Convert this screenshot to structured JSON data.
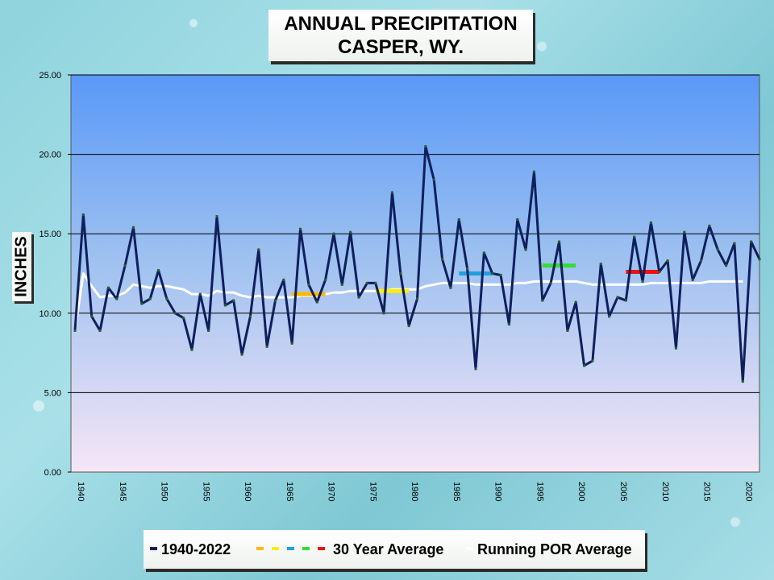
{
  "title_line1": "ANNUAL PRECIPITATION",
  "title_line2": "CASPER, WY.",
  "chart_data": {
    "type": "line",
    "ylabel": "INCHES",
    "ylim": [
      0,
      25
    ],
    "xlim": [
      1940,
      2022
    ],
    "yticks": [
      "0.00",
      "5.00",
      "10.00",
      "15.00",
      "20.00",
      "25.00"
    ],
    "xticks": [
      "1940",
      "1945",
      "1950",
      "1955",
      "1960",
      "1965",
      "1970",
      "1975",
      "1980",
      "1985",
      "1990",
      "1995",
      "2000",
      "2005",
      "2010",
      "2015",
      "2020"
    ],
    "grid": true,
    "legend_position": "bottom",
    "series": [
      {
        "name": "1940-2022",
        "color": "#0f1f5c",
        "x": [
          1940,
          1941,
          1942,
          1943,
          1944,
          1945,
          1946,
          1947,
          1948,
          1949,
          1950,
          1951,
          1952,
          1953,
          1954,
          1955,
          1956,
          1957,
          1958,
          1959,
          1960,
          1961,
          1962,
          1963,
          1964,
          1965,
          1966,
          1967,
          1968,
          1969,
          1970,
          1971,
          1972,
          1973,
          1974,
          1975,
          1976,
          1977,
          1978,
          1979,
          1980,
          1981,
          1982,
          1983,
          1984,
          1985,
          1986,
          1987,
          1988,
          1989,
          1990,
          1991,
          1992,
          1993,
          1994,
          1995,
          1996,
          1997,
          1998,
          1999,
          2000,
          2001,
          2002,
          2003,
          2004,
          2005,
          2006,
          2007,
          2008,
          2009,
          2010,
          2011,
          2012,
          2013,
          2014,
          2015,
          2016,
          2017,
          2018,
          2019,
          2020,
          2021,
          2022
        ],
        "y": [
          8.9,
          16.2,
          9.8,
          8.9,
          11.6,
          10.9,
          13.0,
          15.4,
          10.6,
          10.9,
          12.7,
          10.9,
          10.0,
          9.7,
          7.7,
          11.2,
          8.9,
          16.1,
          10.5,
          10.8,
          7.4,
          9.8,
          14.0,
          7.9,
          10.8,
          12.1,
          8.1,
          15.3,
          11.8,
          10.7,
          12.1,
          15.0,
          11.8,
          15.1,
          11.0,
          11.9,
          11.9,
          10.0,
          17.6,
          12.5,
          9.2,
          10.9,
          20.5,
          18.4,
          13.4,
          11.6,
          15.9,
          12.8,
          6.5,
          13.8,
          12.5,
          12.4,
          9.3,
          15.9,
          14.0,
          18.9,
          10.8,
          11.9,
          14.5,
          8.9,
          10.7,
          6.7,
          7.0,
          13.1,
          9.8,
          11.0,
          10.8,
          14.8,
          12.0,
          15.7,
          12.6,
          13.3,
          7.8,
          15.1,
          12.1,
          13.3,
          15.5,
          14.0,
          13.0,
          14.4,
          5.7,
          14.5,
          13.4
        ]
      },
      {
        "name": "30 Year Average",
        "segments": [
          {
            "x": [
              1966,
              1970
            ],
            "y": 11.2,
            "color": "#ffb800"
          },
          {
            "x": [
              1976,
              1980
            ],
            "y": 11.4,
            "color": "#ffee00"
          },
          {
            "x": [
              1986,
              1990
            ],
            "y": 12.5,
            "color": "#1fa0e0"
          },
          {
            "x": [
              1996,
              2000
            ],
            "y": 13.0,
            "color": "#33dd33"
          },
          {
            "x": [
              2006,
              2010
            ],
            "y": 12.6,
            "color": "#ee1111"
          }
        ]
      },
      {
        "name": "Running POR Average",
        "color": "#ffffff",
        "x": [
          1940,
          1941,
          1942,
          1943,
          1944,
          1945,
          1946,
          1947,
          1948,
          1949,
          1950,
          1951,
          1952,
          1953,
          1954,
          1955,
          1956,
          1957,
          1958,
          1959,
          1960,
          1961,
          1962,
          1963,
          1964,
          1965,
          1966,
          1967,
          1968,
          1969,
          1970,
          1971,
          1972,
          1973,
          1974,
          1975,
          1976,
          1977,
          1978,
          1979,
          1980,
          1981,
          1982,
          1983,
          1984,
          1985,
          1986,
          1987,
          1988,
          1989,
          1990,
          1991,
          1992,
          1993,
          1994,
          1995,
          1996,
          1997,
          1998,
          1999,
          2000,
          2001,
          2002,
          2003,
          2004,
          2005,
          2006,
          2007,
          2008,
          2009,
          2010,
          2011,
          2012,
          2013,
          2014,
          2015,
          2016,
          2017,
          2018,
          2019,
          2020
        ],
        "y": [
          8.9,
          12.5,
          11.7,
          11.0,
          11.1,
          11.1,
          11.3,
          11.8,
          11.7,
          11.6,
          11.7,
          11.7,
          11.6,
          11.5,
          11.2,
          11.2,
          11.1,
          11.4,
          11.3,
          11.3,
          11.1,
          11.0,
          11.1,
          11.0,
          11.0,
          11.0,
          11.0,
          11.1,
          11.1,
          11.1,
          11.2,
          11.3,
          11.3,
          11.4,
          11.4,
          11.4,
          11.4,
          11.4,
          11.5,
          11.5,
          11.5,
          11.5,
          11.7,
          11.8,
          11.9,
          11.9,
          11.9,
          11.9,
          11.8,
          11.8,
          11.8,
          11.8,
          11.8,
          11.9,
          11.9,
          12.0,
          12.0,
          12.0,
          12.0,
          12.0,
          12.0,
          11.9,
          11.8,
          11.8,
          11.8,
          11.8,
          11.8,
          11.8,
          11.8,
          11.9,
          11.9,
          11.9,
          11.9,
          11.9,
          11.9,
          11.9,
          12.0,
          12.0,
          12.0,
          12.0,
          12.0
        ]
      }
    ]
  },
  "legend": {
    "series1_label": "1940-2022",
    "series2_label": "30 Year Average",
    "series3_label": "Running POR Average",
    "series2_colors": [
      "#ffb800",
      "#ffee00",
      "#1fa0e0",
      "#33dd33",
      "#ee1111"
    ]
  }
}
